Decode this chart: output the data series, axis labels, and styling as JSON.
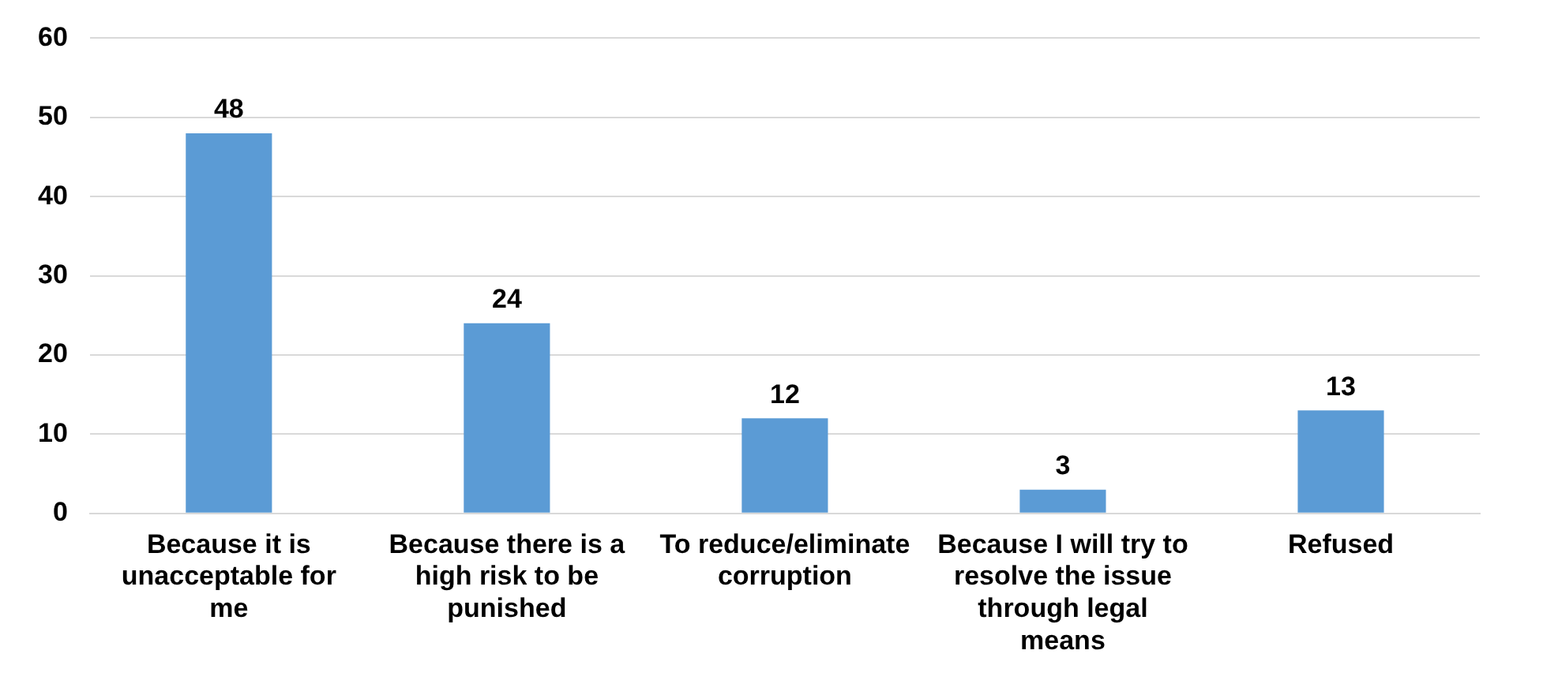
{
  "chart_data": {
    "type": "bar",
    "categories": [
      "Because it is unacceptable for me",
      "Because there is a high risk to be punished",
      "To reduce/eliminate corruption",
      "Because I will try to resolve the issue through legal means",
      "Refused"
    ],
    "values": [
      48,
      24,
      12,
      3,
      13
    ],
    "color": "#5b9bd5",
    "data_labels": true,
    "ylim": [
      0,
      60
    ],
    "yticks": [
      0,
      10,
      20,
      30,
      40,
      50,
      60
    ],
    "grid": "y",
    "legend": false
  }
}
